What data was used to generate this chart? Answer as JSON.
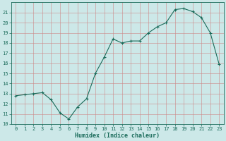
{
  "xlabel": "Humidex (Indice chaleur)",
  "x": [
    0,
    1,
    2,
    3,
    4,
    5,
    6,
    7,
    8,
    9,
    10,
    11,
    12,
    13,
    14,
    15,
    16,
    17,
    18,
    19,
    20,
    21,
    22,
    23
  ],
  "y": [
    12.8,
    12.9,
    13.0,
    13.1,
    12.4,
    11.1,
    10.5,
    11.7,
    12.5,
    15.0,
    16.6,
    18.4,
    18.0,
    18.2,
    18.2,
    19.0,
    19.6,
    20.0,
    21.3,
    21.4,
    21.1,
    20.5,
    19.0,
    15.9
  ],
  "line_color": "#1a6b5a",
  "marker": "+",
  "marker_size": 3,
  "marker_linewidth": 0.8,
  "line_width": 0.8,
  "bg_color": "#cce8e8",
  "grid_major_color": "#aaaaaa",
  "grid_minor_color": "#cc9999",
  "tick_color": "#1a6b5a",
  "label_color": "#1a6b5a",
  "ylim": [
    10,
    22
  ],
  "xlim": [
    -0.5,
    23.5
  ],
  "yticks": [
    10,
    11,
    12,
    13,
    14,
    15,
    16,
    17,
    18,
    19,
    20,
    21
  ],
  "xticks": [
    0,
    1,
    2,
    3,
    4,
    5,
    6,
    7,
    8,
    9,
    10,
    11,
    12,
    13,
    14,
    15,
    16,
    17,
    18,
    19,
    20,
    21,
    22,
    23
  ],
  "xlabel_fontsize": 6.0,
  "tick_fontsize": 5.0
}
